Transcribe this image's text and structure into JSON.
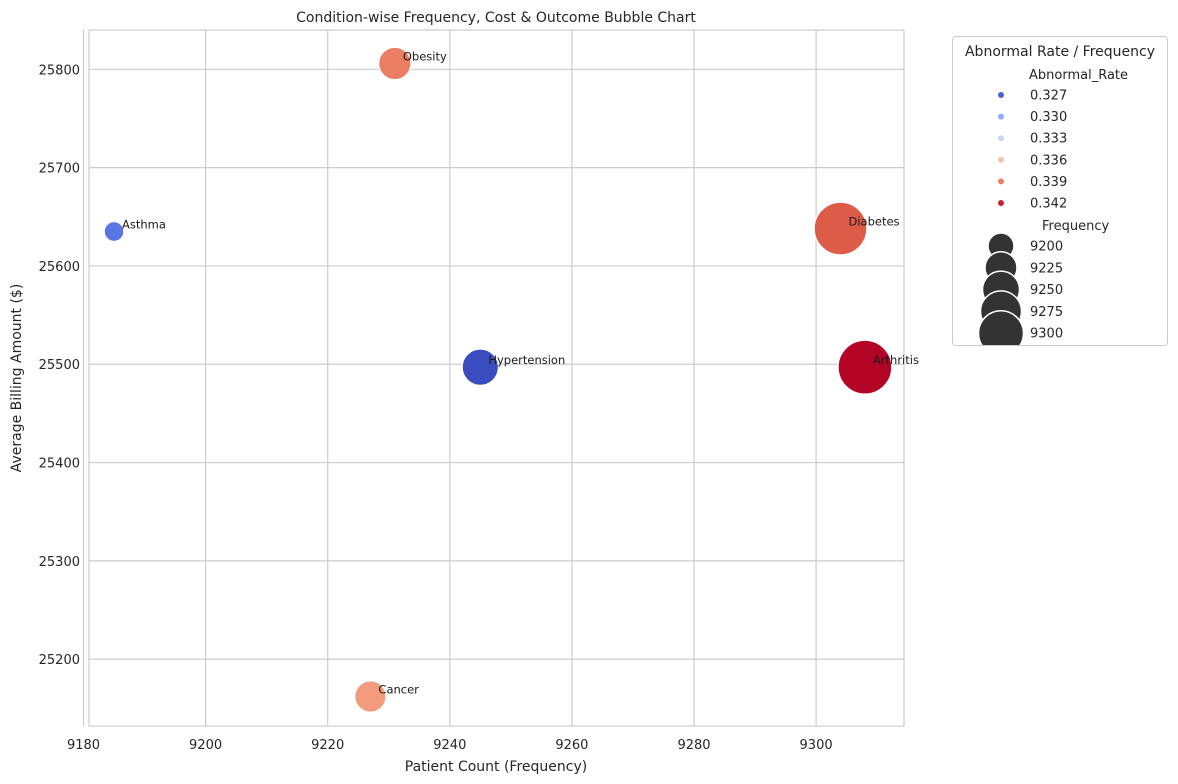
{
  "chart_data": {
    "type": "scatter",
    "title": "Condition-wise Frequency, Cost & Outcome Bubble Chart",
    "xlabel": "Patient Count (Frequency)",
    "ylabel": "Average Billing Amount ($)",
    "xlim": [
      9180.9,
      9314.4
    ],
    "ylim": [
      25132,
      25840
    ],
    "xticks": [
      "9180",
      "9200",
      "9220",
      "9240",
      "9260",
      "9280",
      "9300"
    ],
    "yticks": [
      "25200",
      "25300",
      "25400",
      "25500",
      "25600",
      "25700",
      "25800"
    ],
    "grid": true,
    "points": [
      {
        "label": "Asthma",
        "x": 9185,
        "y": 25635,
        "abnormal_rate": 0.3287,
        "color": "#5977e3"
      },
      {
        "label": "Obesity",
        "x": 9231,
        "y": 25806,
        "abnormal_rate": 0.3398,
        "color": "#ec7f63"
      },
      {
        "label": "Hypertension",
        "x": 9245,
        "y": 25497,
        "abnormal_rate": 0.3265,
        "color": "#3b4cc0"
      },
      {
        "label": "Diabetes",
        "x": 9304,
        "y": 25638,
        "abnormal_rate": 0.3404,
        "color": "#dd5c48"
      },
      {
        "label": "Arthritis",
        "x": 9308,
        "y": 25497,
        "abnormal_rate": 0.3432,
        "color": "#b40426"
      },
      {
        "label": "Cancer",
        "x": 9227,
        "y": 25162,
        "abnormal_rate": 0.3375,
        "color": "#f39b7d"
      }
    ],
    "legend": {
      "title": "Abnormal Rate / Frequency",
      "placement": "outside right",
      "color_header": "Abnormal_Rate",
      "color_entries": [
        {
          "label": "0.327",
          "color": "#4a63d3"
        },
        {
          "label": "0.330",
          "color": "#8fb0fe"
        },
        {
          "label": "0.333",
          "color": "#c5d6f2"
        },
        {
          "label": "0.336",
          "color": "#f2c4a9"
        },
        {
          "label": "0.339",
          "color": "#ec7f63"
        },
        {
          "label": "0.342",
          "color": "#c7202f"
        }
      ],
      "size_header": "Frequency",
      "size_entries": [
        "9200",
        "9225",
        "9250",
        "9275",
        "9300"
      ],
      "size_color": "#333333"
    }
  }
}
